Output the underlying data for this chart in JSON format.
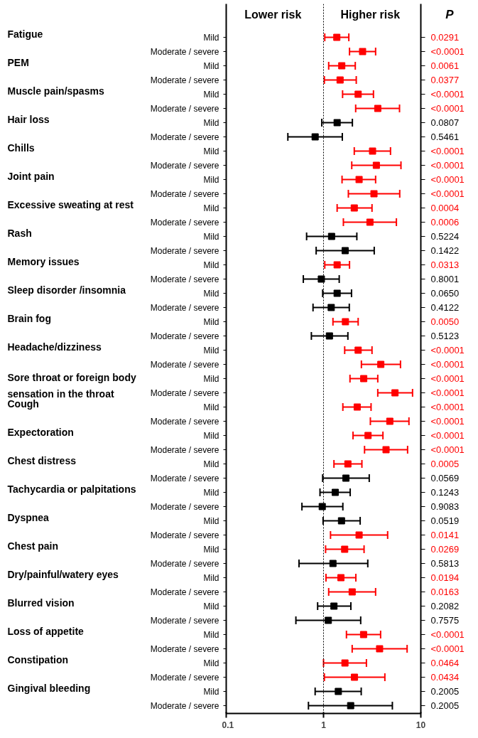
{
  "chart_data": {
    "type": "scatter",
    "orientation": "horizontal",
    "marker": "square",
    "log": "x",
    "grid": false,
    "categories": [
      "Mild",
      "Moderate / severe",
      "Mild",
      "Moderate / severe",
      "Mild",
      "Moderate / severe",
      "Mild",
      "Moderate / severe",
      "Mild",
      "Moderate / severe",
      "Mild",
      "Moderate / severe",
      "Mild",
      "Moderate / severe",
      "Mild",
      "Moderate / severe",
      "Mild",
      "Moderate / severe",
      "Mild",
      "Moderate / severe",
      "Mild",
      "Moderate / severe",
      "Mild",
      "Moderate / severe",
      "Mild",
      "Moderate / severe",
      "Mild",
      "Moderate / severe",
      "Mild",
      "Moderate / severe",
      "Mild",
      "Moderate / severe",
      "Mild",
      "Moderate / severe",
      "Mild",
      "Moderate / severe",
      "Mild",
      "Moderate / severe",
      "Mild",
      "Moderate / severe",
      "Mild",
      "Moderate / severe",
      "Mild",
      "Moderate / severe",
      "Mild",
      "Moderate / severe",
      "Mild",
      "Moderate / severe"
    ],
    "annotations": [
      "Fatigue",
      "PEM",
      "Muscle pain/spasms",
      "Hair loss",
      "Chills",
      "Joint pain",
      "Excessive sweating at rest",
      "Rash",
      "Memory issues",
      "Sleep disorder /insomnia",
      "Brain fog",
      "Headache/dizziness",
      "Sore throat or foreign body\nsensation in the throat",
      "Cough",
      "Expectoration",
      "Chest distress",
      "Tachycardia or palpitations",
      "Dyspnea",
      "Chest pain",
      "Dry/painful/watery eyes",
      "Blurred vision",
      "Loss of appetite",
      "Constipation",
      "Gingival bleeding",
      "Lower risk",
      "Higher risk"
    ],
    "values": [
      1.37,
      2.52,
      1.54,
      1.48,
      2.27,
      3.61,
      1.38,
      0.82,
      3.19,
      3.49,
      2.32,
      3.3,
      2.07,
      3.0,
      1.21,
      1.67,
      1.38,
      0.95,
      1.38,
      1.2,
      1.68,
      1.15,
      2.27,
      3.88,
      2.59,
      5.43,
      2.22,
      4.8,
      2.87,
      4.39,
      1.78,
      1.7,
      1.32,
      0.97,
      1.53,
      2.32,
      1.65,
      1.25,
      1.51,
      1.97,
      1.28,
      1.12,
      2.58,
      3.77,
      1.66,
      2.08,
      1.42,
      1.9
    ],
    "errors": [
      [
        1.03,
        1.82
      ],
      [
        1.85,
        3.43
      ],
      [
        1.13,
        2.12
      ],
      [
        1.02,
        2.17
      ],
      [
        1.57,
        3.26
      ],
      [
        2.14,
        6.04
      ],
      [
        0.96,
        1.98
      ],
      [
        0.43,
        1.56
      ],
      [
        2.07,
        4.88
      ],
      [
        1.95,
        6.25
      ],
      [
        1.55,
        3.43
      ],
      [
        1.8,
        6.07
      ],
      [
        1.38,
        3.15
      ],
      [
        1.6,
        5.61
      ],
      [
        0.67,
        2.2
      ],
      [
        0.84,
        3.32
      ],
      [
        1.03,
        1.85
      ],
      [
        0.62,
        1.45
      ],
      [
        0.98,
        1.94
      ],
      [
        0.78,
        1.84
      ],
      [
        1.25,
        2.27
      ],
      [
        0.75,
        1.78
      ],
      [
        1.65,
        3.15
      ],
      [
        2.45,
        6.18
      ],
      [
        1.87,
        3.61
      ],
      [
        3.61,
        8.22
      ],
      [
        1.58,
        3.08
      ],
      [
        3.03,
        7.55
      ],
      [
        2.01,
        4.08
      ],
      [
        2.64,
        7.31
      ],
      [
        1.28,
        2.48
      ],
      [
        0.98,
        2.95
      ],
      [
        0.92,
        1.88
      ],
      [
        0.6,
        1.58
      ],
      [
        0.99,
        2.38
      ],
      [
        1.18,
        4.56
      ],
      [
        1.05,
        2.61
      ],
      [
        0.56,
        2.85
      ],
      [
        1.06,
        2.15
      ],
      [
        1.13,
        3.43
      ],
      [
        0.87,
        1.91
      ],
      [
        0.52,
        2.41
      ],
      [
        1.72,
        3.86
      ],
      [
        1.97,
        7.23
      ],
      [
        1.0,
        2.76
      ],
      [
        1.02,
        4.27
      ],
      [
        0.82,
        2.44
      ],
      [
        0.7,
        5.1
      ]
    ],
    "colors": [
      "#ff0000",
      "#ff0000",
      "#ff0000",
      "#ff0000",
      "#ff0000",
      "#ff0000",
      "#000000",
      "#000000",
      "#ff0000",
      "#ff0000",
      "#ff0000",
      "#ff0000",
      "#ff0000",
      "#ff0000",
      "#000000",
      "#000000",
      "#ff0000",
      "#000000",
      "#000000",
      "#000000",
      "#ff0000",
      "#000000",
      "#ff0000",
      "#ff0000",
      "#ff0000",
      "#ff0000",
      "#ff0000",
      "#ff0000",
      "#ff0000",
      "#ff0000",
      "#ff0000",
      "#000000",
      "#000000",
      "#000000",
      "#000000",
      "#ff0000",
      "#ff0000",
      "#000000",
      "#ff0000",
      "#ff0000",
      "#000000",
      "#000000",
      "#ff0000",
      "#ff0000",
      "#ff0000",
      "#ff0000",
      "#000000",
      "#000000"
    ],
    "y2label": "P",
    "y2_categories": [
      "0.0291",
      "<0.0001",
      "0.0061",
      "0.0377",
      "<0.0001",
      "<0.0001",
      "0.0807",
      "0.5461",
      "<0.0001",
      "<0.0001",
      "<0.0001",
      "<0.0001",
      "0.0004",
      "0.0006",
      "0.5224",
      "0.1422",
      "0.0313",
      "0.8001",
      "0.0650",
      "0.4122",
      "0.0050",
      "0.5123",
      "<0.0001",
      "<0.0001",
      "<0.0001",
      "<0.0001",
      "<0.0001",
      "<0.0001",
      "<0.0001",
      "<0.0001",
      "0.0005",
      "0.0569",
      "0.1243",
      "0.9083",
      "0.0519",
      "0.0141",
      "0.0269",
      "0.5813",
      "0.0194",
      "0.0163",
      "0.2082",
      "0.7575",
      "<0.0001",
      "<0.0001",
      "0.0464",
      "0.0434",
      "0.2005",
      "0.2005"
    ],
    "xlim": [
      0.1,
      10
    ],
    "xticks": [
      0.1,
      1,
      10
    ],
    "ref_lines": [
      {
        "axis": "x",
        "value": 1,
        "color": "#000000",
        "line_style": "dotted"
      }
    ]
  }
}
